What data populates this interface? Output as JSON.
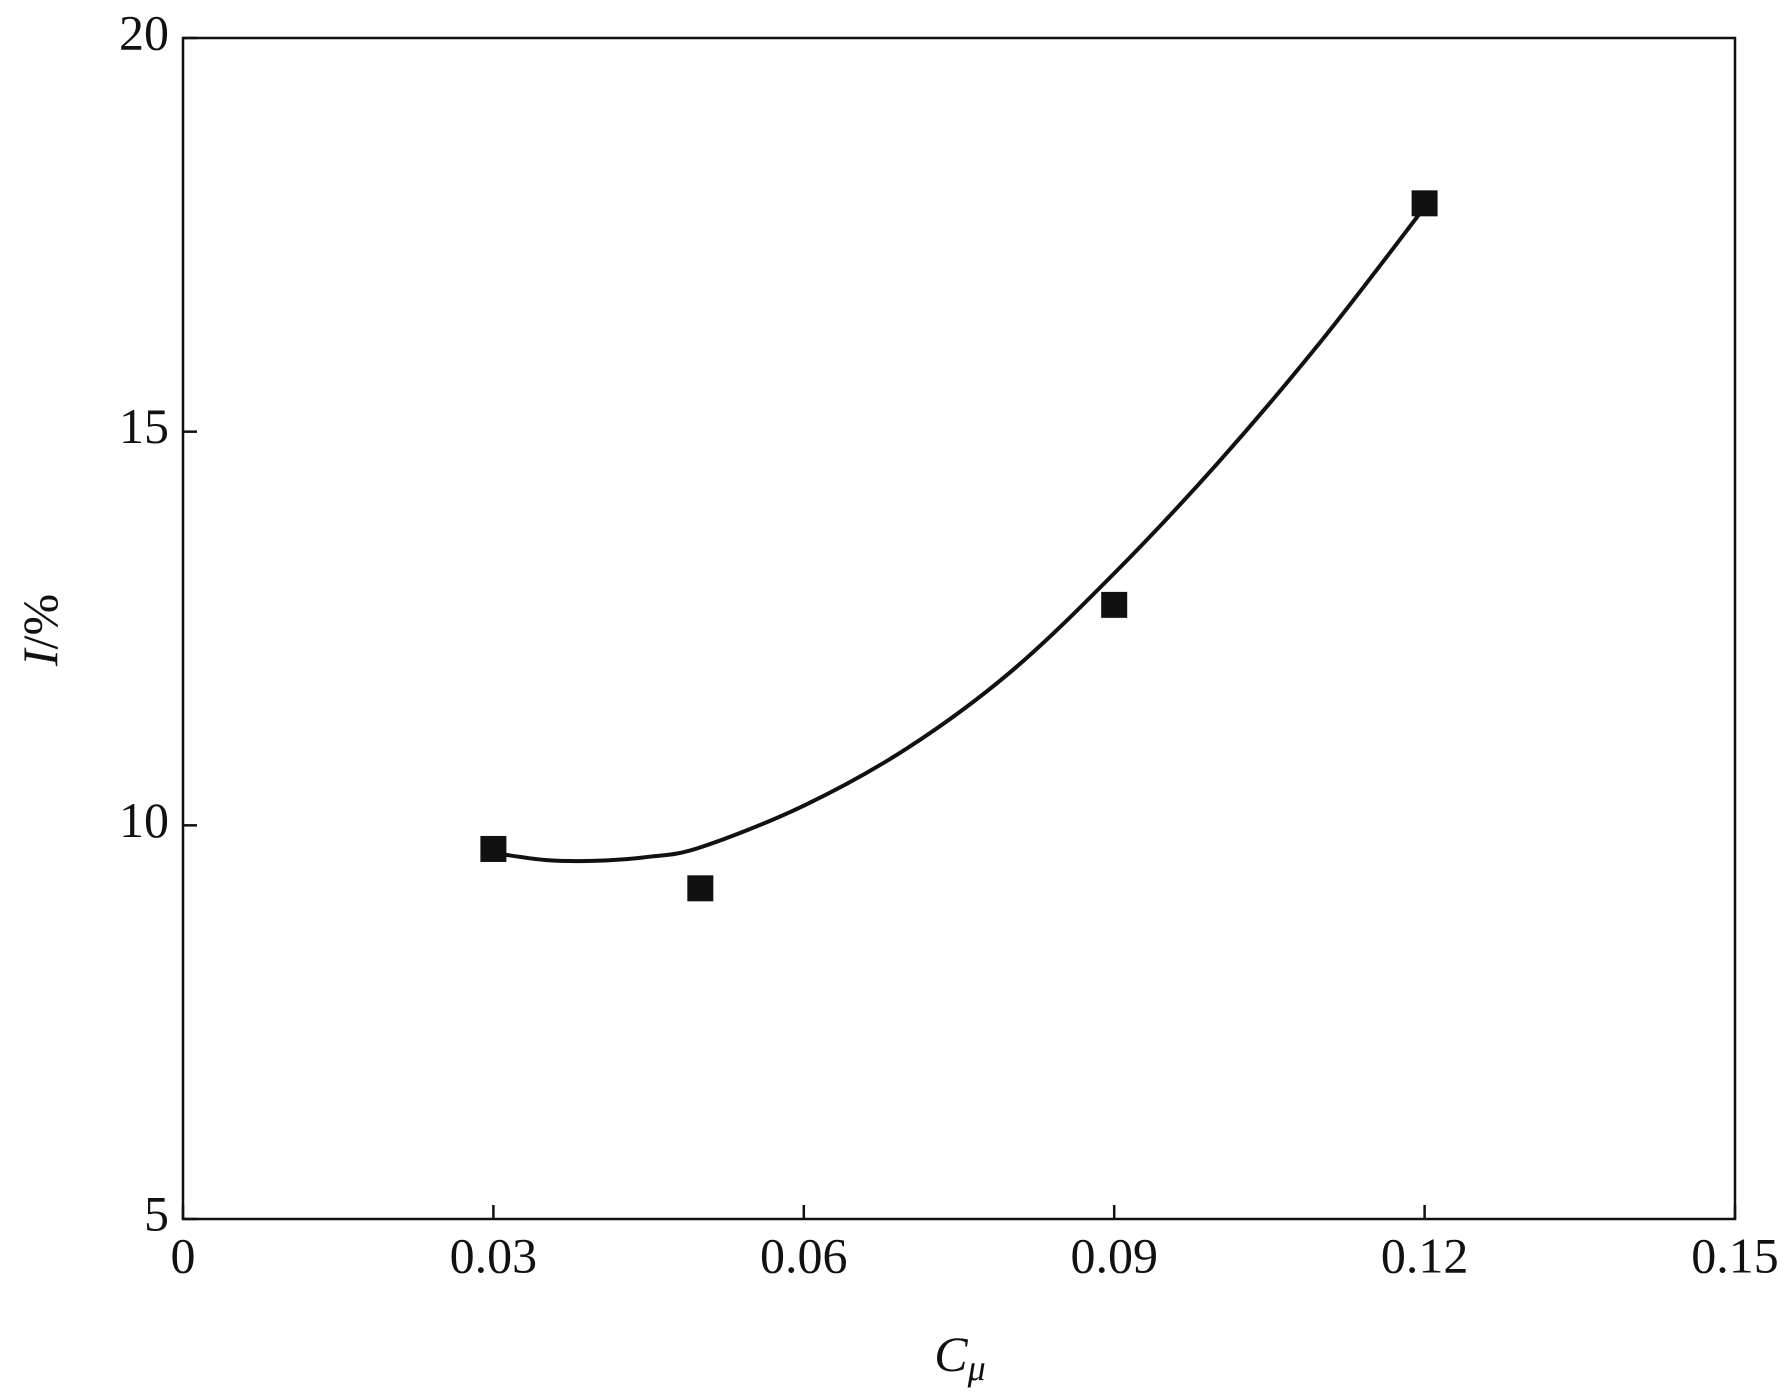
{
  "chart_data": {
    "type": "scatter",
    "xlabel": [
      "C",
      "μ"
    ],
    "ylabel": [
      "I",
      "/%"
    ],
    "xlim": [
      0,
      0.15
    ],
    "xticks": [
      0,
      0.03,
      0.06,
      0.09,
      0.12,
      0.15
    ],
    "ylim": [
      5,
      20
    ],
    "yticks": [
      5,
      10,
      15,
      20
    ],
    "series": [
      {
        "type": "scatter",
        "color": "#111111",
        "x": [
          0.03,
          0.05,
          0.09,
          0.12
        ],
        "values": [
          9.7,
          9.2,
          12.8,
          17.9
        ]
      },
      {
        "type": "line",
        "color": "#111111",
        "x": [
          0.03,
          0.035,
          0.04,
          0.045,
          0.05,
          0.06,
          0.07,
          0.08,
          0.09,
          0.1,
          0.11,
          0.12
        ],
        "values": [
          9.65,
          9.56,
          9.55,
          9.6,
          9.72,
          10.25,
          10.98,
          11.95,
          13.2,
          14.6,
          16.15,
          17.85
        ]
      }
    ]
  }
}
